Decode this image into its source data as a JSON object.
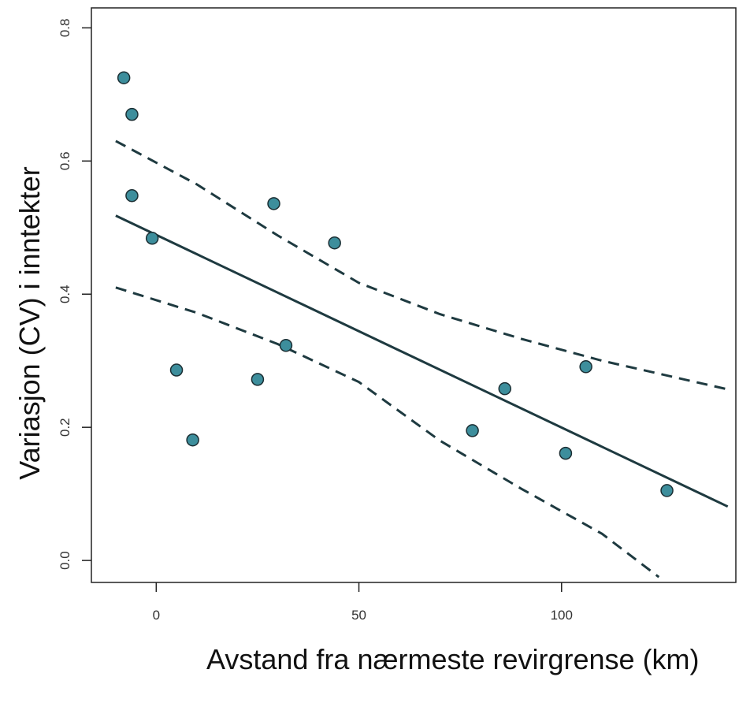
{
  "chart_data": {
    "type": "scatter",
    "title": "",
    "xlabel": "Avstand fra nærmeste revirgrense (km)",
    "ylabel": "Variasjon (CV) i inntekter",
    "xlim": [
      -16,
      143
    ],
    "ylim": [
      -0.033,
      0.83
    ],
    "x_ticks": [
      0,
      50,
      100
    ],
    "y_ticks": [
      0.0,
      0.2,
      0.4,
      0.6,
      0.8
    ],
    "x_tick_labels": [
      "0",
      "50",
      "100"
    ],
    "y_tick_labels": [
      "0.0",
      "0.2",
      "0.4",
      "0.6",
      "0.8"
    ],
    "grid": false,
    "point_color": "#3d8e9c",
    "line_color": "#1e3a40",
    "series": [
      {
        "type": "scatter",
        "points": [
          {
            "x": -8,
            "y": 0.725
          },
          {
            "x": -6,
            "y": 0.67
          },
          {
            "x": -6,
            "y": 0.548
          },
          {
            "x": -1,
            "y": 0.484
          },
          {
            "x": 5,
            "y": 0.286
          },
          {
            "x": 9,
            "y": 0.181
          },
          {
            "x": 25,
            "y": 0.272
          },
          {
            "x": 29,
            "y": 0.536
          },
          {
            "x": 32,
            "y": 0.323
          },
          {
            "x": 44,
            "y": 0.477
          },
          {
            "x": 78,
            "y": 0.195
          },
          {
            "x": 86,
            "y": 0.258
          },
          {
            "x": 101,
            "y": 0.161
          },
          {
            "x": 106,
            "y": 0.291
          },
          {
            "x": 126,
            "y": 0.105
          }
        ]
      },
      {
        "type": "line",
        "style": "solid",
        "points": [
          {
            "x": -10,
            "y": 0.518
          },
          {
            "x": 141,
            "y": 0.081
          }
        ]
      },
      {
        "type": "line",
        "style": "dashed",
        "points": [
          {
            "x": -10,
            "y": 0.63
          },
          {
            "x": 10,
            "y": 0.565
          },
          {
            "x": 30,
            "y": 0.488
          },
          {
            "x": 50,
            "y": 0.417
          },
          {
            "x": 70,
            "y": 0.37
          },
          {
            "x": 90,
            "y": 0.333
          },
          {
            "x": 110,
            "y": 0.3
          },
          {
            "x": 141,
            "y": 0.257
          }
        ]
      },
      {
        "type": "line",
        "style": "dashed",
        "points": [
          {
            "x": -10,
            "y": 0.41
          },
          {
            "x": 10,
            "y": 0.372
          },
          {
            "x": 30,
            "y": 0.325
          },
          {
            "x": 50,
            "y": 0.268
          },
          {
            "x": 70,
            "y": 0.18
          },
          {
            "x": 90,
            "y": 0.108
          },
          {
            "x": 110,
            "y": 0.04
          },
          {
            "x": 124,
            "y": -0.025
          }
        ]
      }
    ]
  }
}
